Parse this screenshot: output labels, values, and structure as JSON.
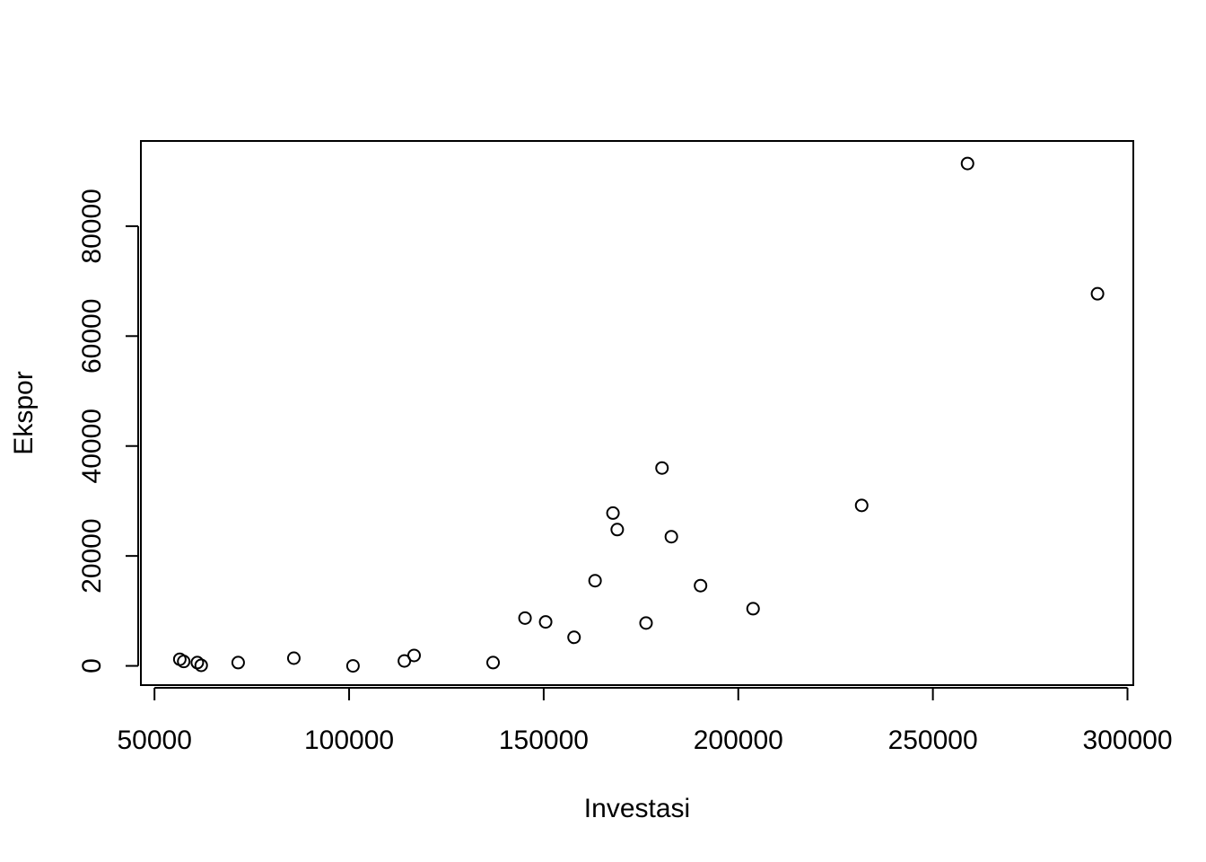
{
  "chart_data": {
    "type": "scatter",
    "title": "",
    "xlabel": "Investasi",
    "ylabel": "Ekspor",
    "xlim": [
      46500,
      301500
    ],
    "ylim": [
      -3500,
      95500
    ],
    "x_ticks": [
      {
        "value": 50000,
        "label": "50000"
      },
      {
        "value": 100000,
        "label": "100000"
      },
      {
        "value": 150000,
        "label": "150000"
      },
      {
        "value": 200000,
        "label": "200000"
      },
      {
        "value": 250000,
        "label": "250000"
      },
      {
        "value": 300000,
        "label": "300000"
      }
    ],
    "y_ticks": [
      {
        "value": 0,
        "label": "0"
      },
      {
        "value": 20000,
        "label": "20000"
      },
      {
        "value": 40000,
        "label": "40000"
      },
      {
        "value": 60000,
        "label": "60000"
      },
      {
        "value": 80000,
        "label": "80000"
      }
    ],
    "grid": false,
    "points": [
      {
        "x": 56500,
        "y": 1200
      },
      {
        "x": 57500,
        "y": 800
      },
      {
        "x": 61000,
        "y": 600
      },
      {
        "x": 62000,
        "y": 100
      },
      {
        "x": 71500,
        "y": 600
      },
      {
        "x": 85800,
        "y": 1400
      },
      {
        "x": 101000,
        "y": 0
      },
      {
        "x": 114200,
        "y": 900
      },
      {
        "x": 116700,
        "y": 1900
      },
      {
        "x": 137000,
        "y": 600
      },
      {
        "x": 145200,
        "y": 8700
      },
      {
        "x": 150500,
        "y": 8000
      },
      {
        "x": 157800,
        "y": 5200
      },
      {
        "x": 163200,
        "y": 15500
      },
      {
        "x": 167800,
        "y": 27800
      },
      {
        "x": 168900,
        "y": 24800
      },
      {
        "x": 176300,
        "y": 7800
      },
      {
        "x": 180400,
        "y": 36000
      },
      {
        "x": 182800,
        "y": 23500
      },
      {
        "x": 190300,
        "y": 14600
      },
      {
        "x": 203800,
        "y": 10400
      },
      {
        "x": 231700,
        "y": 29200
      },
      {
        "x": 258900,
        "y": 91400
      },
      {
        "x": 292300,
        "y": 67700
      }
    ]
  }
}
